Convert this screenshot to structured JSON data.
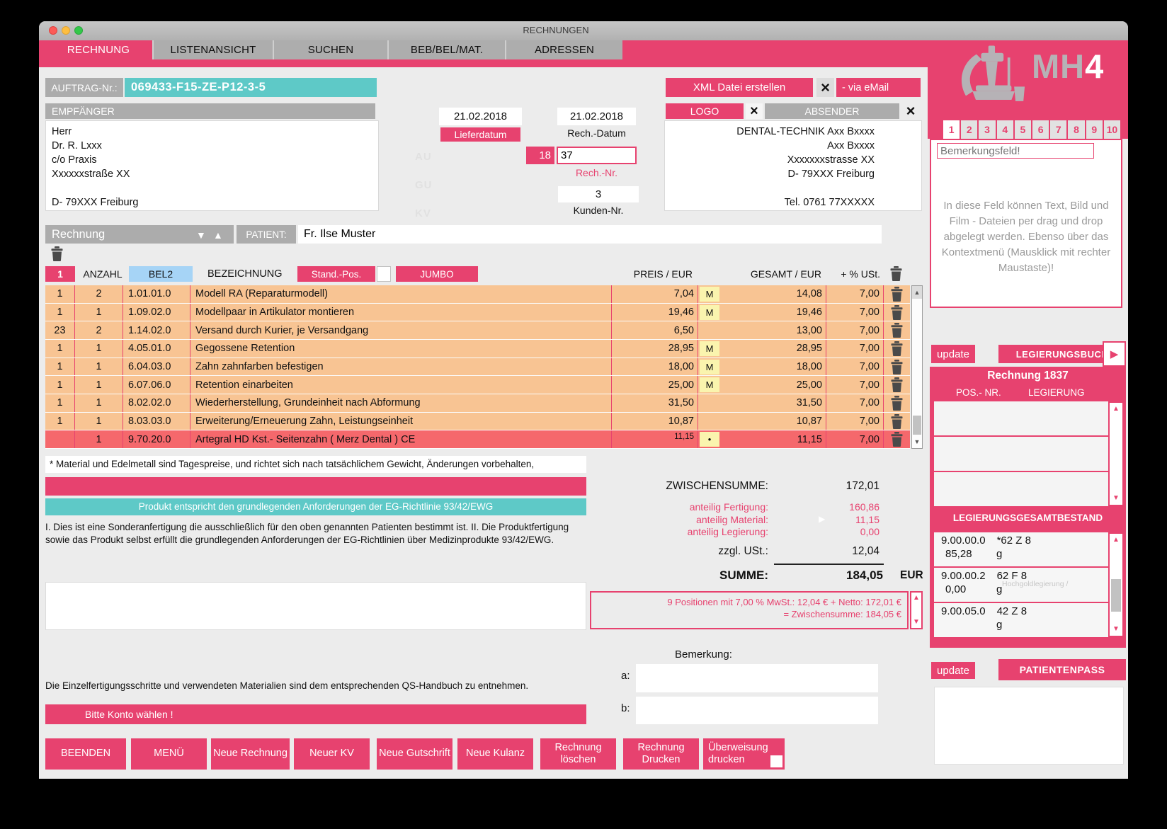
{
  "window": {
    "title": "RECHNUNGEN"
  },
  "nav_tabs": [
    {
      "label": "RECHNUNG",
      "active": true
    },
    {
      "label": "LISTENANSICHT",
      "active": false
    },
    {
      "label": "SUCHEN",
      "active": false
    },
    {
      "label": "BEB/BEL/MAT.",
      "active": false
    },
    {
      "label": "ADRESSEN",
      "active": false
    }
  ],
  "auftrag": {
    "label": "AUFTRAG-Nr.:",
    "value": "069433-F15-ZE-P12-3-5"
  },
  "top_actions": {
    "xml_button": "XML Datei erstellen",
    "email_button": "- via eMail"
  },
  "empfaenger": {
    "header": "EMPFÄNGER",
    "address": "Herr\nDr. R. Lxxx\nc/o Praxis\nXxxxxxstraße XX\n\nD- 79XXX Freiburg"
  },
  "dates": {
    "lieferdatum_value": "21.02.2018",
    "lieferdatum_label": "Lieferdatum",
    "rechdatum_value": "21.02.2018",
    "rechdatum_label": "Rech.-Datum",
    "rechnr_prefix": "18",
    "rechnr_value": "37",
    "rechnr_label": "Rech.-Nr.",
    "kundennr_value": "3",
    "kundennr_label": "Kunden-Nr."
  },
  "stamps": [
    "AU",
    "GU",
    "KV"
  ],
  "absender": {
    "logo_button": "LOGO",
    "header": "ABSENDER",
    "address": "DENTAL-TECHNIK Axx Bxxxx\nAxx Bxxxx\nXxxxxxxstrasse XX\nD- 79XXX Freiburg\n\nTel. 0761 77XXXXX"
  },
  "invoice_bar": {
    "type": "Rechnung",
    "patient_label": "PATIENT:",
    "patient": "Fr. Ilse Muster"
  },
  "table": {
    "header": {
      "col1": "1",
      "anzahl": "ANZAHL",
      "bel2": "BEL2",
      "bezeichnung": "BEZEICHNUNG",
      "stand_pos": "Stand.-Pos.",
      "jumbo": "JUMBO",
      "preis": "PREIS / EUR",
      "gesamt": "GESAMT / EUR",
      "ust": "+ % USt."
    },
    "rows": [
      {
        "c1": "1",
        "qty": "2",
        "code": "1.01.01.0",
        "desc": "Modell RA (Reparaturmodell)",
        "price": "7,04",
        "marker": "M",
        "total": "14,08",
        "vat": "7,00",
        "red": false
      },
      {
        "c1": "1",
        "qty": "1",
        "code": "1.09.02.0",
        "desc": "Modellpaar in Artikulator montieren",
        "price": "19,46",
        "marker": "M",
        "total": "19,46",
        "vat": "7,00",
        "red": false
      },
      {
        "c1": "23",
        "qty": "2",
        "code": "1.14.02.0",
        "desc": "Versand durch Kurier, je Versandgang",
        "price": "6,50",
        "marker": "",
        "total": "13,00",
        "vat": "7,00",
        "red": false
      },
      {
        "c1": "1",
        "qty": "1",
        "code": "4.05.01.0",
        "desc": "Gegossene Retention",
        "price": "28,95",
        "marker": "M",
        "total": "28,95",
        "vat": "7,00",
        "red": false
      },
      {
        "c1": "1",
        "qty": "1",
        "code": "6.04.03.0",
        "desc": "Zahn zahnfarben befestigen",
        "price": "18,00",
        "marker": "M",
        "total": "18,00",
        "vat": "7,00",
        "red": false
      },
      {
        "c1": "1",
        "qty": "1",
        "code": "6.07.06.0",
        "desc": "Retention einarbeiten",
        "price": "25,00",
        "marker": "M",
        "total": "25,00",
        "vat": "7,00",
        "red": false
      },
      {
        "c1": "1",
        "qty": "1",
        "code": "8.02.02.0",
        "desc": "Wiederherstellung, Grundeinheit nach Abformung",
        "price": "31,50",
        "marker": "",
        "total": "31,50",
        "vat": "7,00",
        "red": false
      },
      {
        "c1": "1",
        "qty": "1",
        "code": "8.03.03.0",
        "desc": "Erweiterung/Erneuerung Zahn, Leistungseinheit",
        "price": "10,87",
        "marker": "",
        "total": "10,87",
        "vat": "7,00",
        "red": false
      },
      {
        "c1": "",
        "qty": "1",
        "code": "9.70.20.0",
        "desc": "Artegral HD Kst.- Seitenzahn ( Merz Dental ) CE",
        "price": "11,15",
        "marker": "•",
        "total": "11,15",
        "vat": "7,00",
        "red": true
      }
    ]
  },
  "footnote": "* Material und Edelmetall sind Tagespreise, und richtet sich nach tatsächlichem Gewicht, Änderungen vorbehalten,",
  "ce_banner": "Produkt entspricht den grundlegenden Anforderungen der EG-Richtlinie 93/42/EWG",
  "legal_text": "I. Dies ist eine Sonderanfertigung die ausschließlich für den oben genannten Patienten bestimmt ist. II. Die Produktfertigung sowie das Produkt selbst erfüllt die grundlegenden Anforderungen der EG-Richtlinien über Medizinprodukte 93/42/EWG.",
  "totals": {
    "zwischensumme_label": "ZWISCHENSUMME:",
    "zwischensumme": "172,01",
    "fertigung_label": "anteilig Fertigung:",
    "fertigung": "160,86",
    "material_label": "anteilig Material:",
    "material": "11,15",
    "legierung_label": "anteilig Legierung:",
    "legierung": "0,00",
    "ust_label": "zzgl. USt.:",
    "ust": "12,04",
    "summe_label": "SUMME:",
    "summe": "184,05",
    "currency": "EUR"
  },
  "summary_box": {
    "line1": "9 Positionen mit 7,00 % MwSt.: 12,04 € + Netto: 172,01 €",
    "line2": "= Zwischensumme: 184,05 €"
  },
  "bemerkung": {
    "label": "Bemerkung:",
    "a_label": "a:",
    "b_label": "b:"
  },
  "qs_note": "Die Einzelfertigungsschritte und verwendeten Materialien sind dem entsprechenden QS-Handbuch zu entnehmen.",
  "konto_warning": "Bitte Konto wählen !",
  "footer_buttons": [
    "BEENDEN",
    "MENÜ",
    "Neue Rechnung",
    "Neuer KV",
    "Neue Gutschrift",
    "Neue Kulanz",
    "Rechnung löschen",
    "Rechnung Drucken",
    "Überweisung drucken"
  ],
  "sidebar": {
    "brand_gray": "MH",
    "brand_white": "4",
    "page_tabs": [
      "1",
      "2",
      "3",
      "4",
      "5",
      "6",
      "7",
      "8",
      "9",
      "10"
    ],
    "bemerkungsfeld_placeholder": "Bemerkungsfeld!",
    "dropzone_hint": "In diese Feld können Text, Bild und Film - Dateien per drag und drop abgelegt werden. Ebenso über das Kontextmenü (Mausklick mit rechter Maustaste)!",
    "update_button": "update",
    "legierungsbuch_button": "LEGIERUNGSBUCH",
    "rechnung_title": "Rechnung 1837",
    "pos_nr_label": "POS.- NR.",
    "legierung_label": "LEGIERUNG",
    "gesamtbestand_title": "LEGIERUNGSGESAMTBESTAND",
    "bestand": [
      {
        "code": "9.00.00.0",
        "name": "*62 Z 8",
        "note": "",
        "amount": "85,28",
        "unit": "g"
      },
      {
        "code": "9.00.00.2",
        "name": "62 F 8",
        "note": "Hochgoldlegierung /",
        "amount": "0,00",
        "unit": "g"
      },
      {
        "code": "9.00.05.0",
        "name": "42 Z 8",
        "note": "",
        "amount": "",
        "unit": "g"
      }
    ],
    "update_button2": "update",
    "patientenpass_button": "PATIENTENPASS"
  },
  "colors": {
    "pink": "#e7426f",
    "teal": "#5ec9c7",
    "row_orange": "#f8c493",
    "row_red": "#f5686c",
    "marker_yellow": "#faf4ae",
    "bel2_blue": "#a6d4f6"
  }
}
